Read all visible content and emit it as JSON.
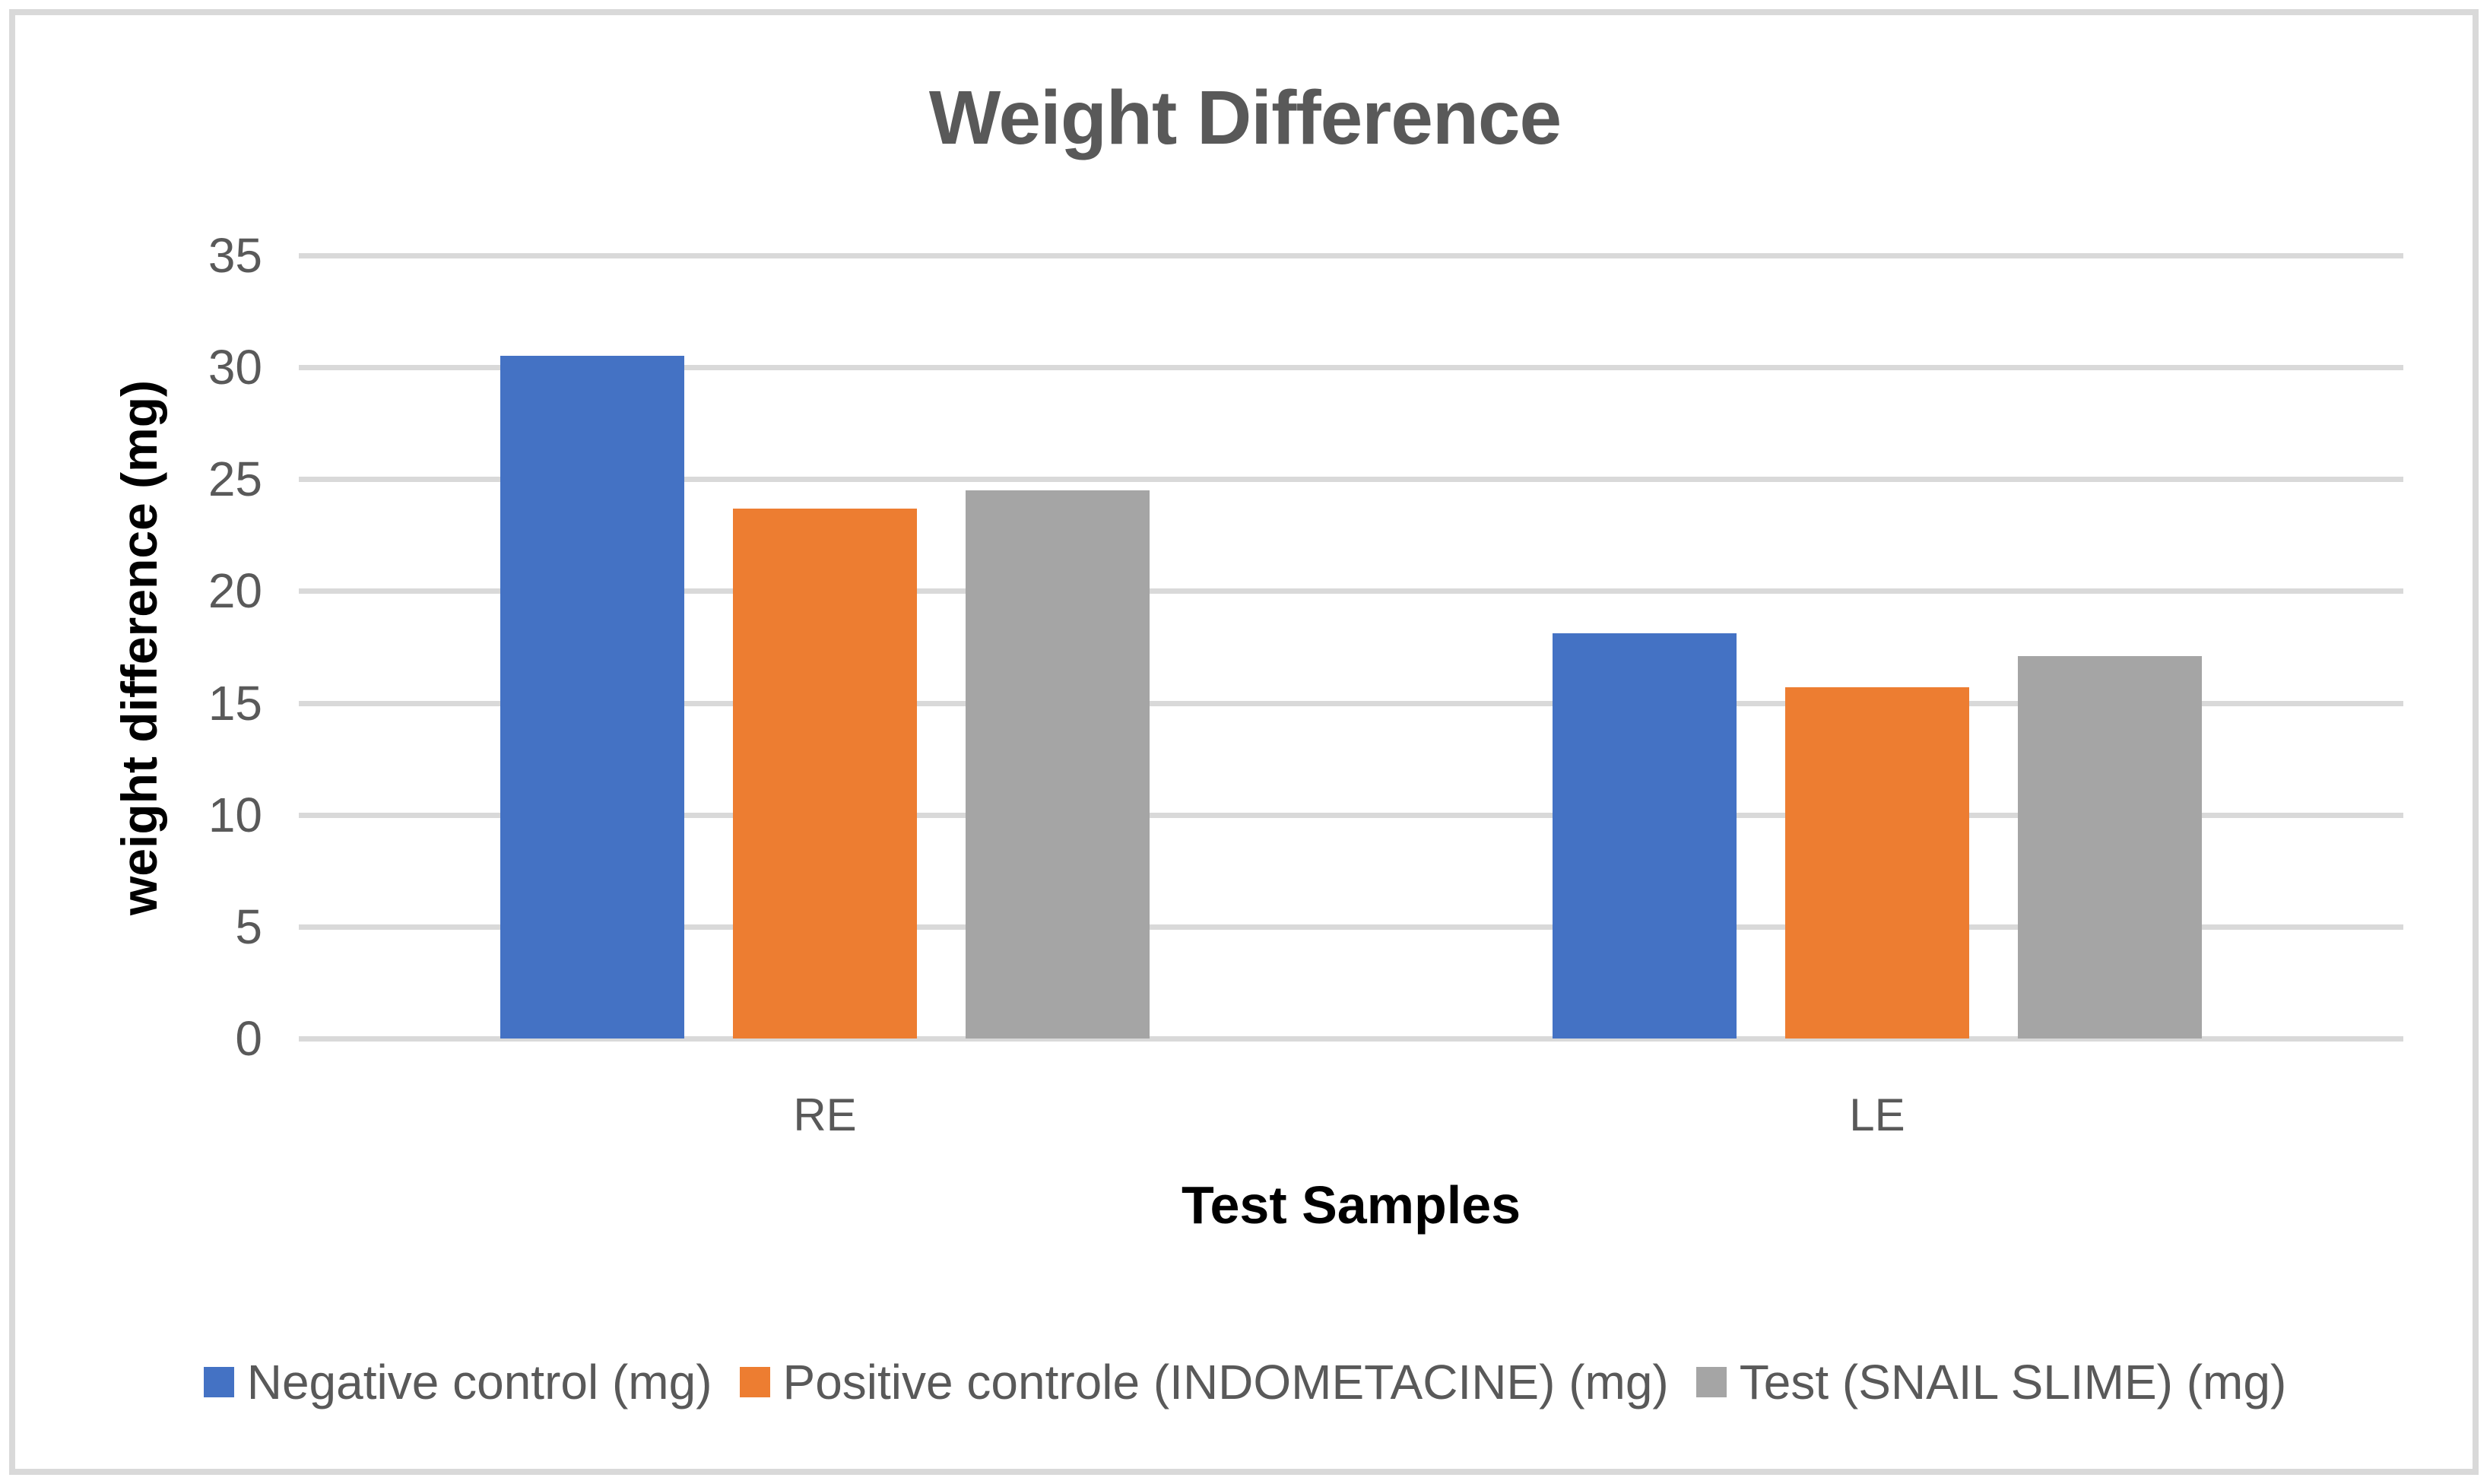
{
  "chart_data": {
    "type": "bar",
    "title": "Weight Difference",
    "xlabel": "Test Samples",
    "ylabel": "weight difference (mg)",
    "categories": [
      "RE",
      "LE"
    ],
    "series": [
      {
        "name": "Negative control (mg)",
        "color": "#4472C4",
        "values": [
          30.5,
          18.1
        ]
      },
      {
        "name": "Positive controle (INDOMETACINE) (mg)",
        "color": "#ED7D31",
        "values": [
          23.7,
          15.7
        ]
      },
      {
        "name": "Test (SNAIL SLIME) (mg)",
        "color": "#A5A5A5",
        "values": [
          24.5,
          17.1
        ]
      }
    ],
    "ylim": [
      0,
      35
    ],
    "yticks": [
      0,
      5,
      10,
      15,
      20,
      25,
      30,
      35
    ],
    "grid": true,
    "legend_position": "bottom"
  },
  "styles": {
    "gridline_color": "#D9D9D9",
    "frame_border_color": "#D9D9D9",
    "title_color": "#595959",
    "tick_color": "#595959",
    "axis_title_color": "#000000",
    "background": "#FFFFFF"
  }
}
